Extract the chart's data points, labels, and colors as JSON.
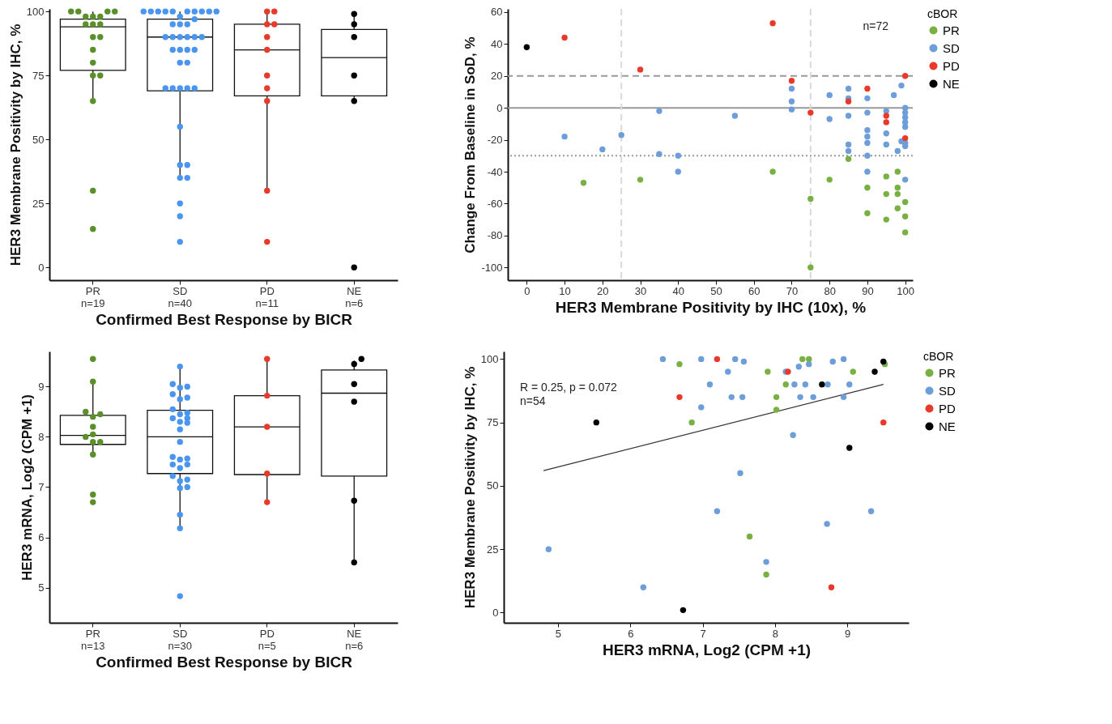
{
  "chart_data": [
    {
      "type": "box",
      "xlabel": "Confirmed Best Response by BICR",
      "ylabel": "HER3 Membrane Positivity by IHC, %",
      "categories": [
        "PR\nn=19",
        "SD\nn=40",
        "PD\nn=11",
        "NE\nn=6"
      ],
      "ylim": [
        -5,
        101
      ],
      "yticks": [
        0,
        25,
        50,
        75,
        100
      ],
      "marker": "circle",
      "boxes": [
        {
          "low": 65,
          "q1": 77,
          "median": 94,
          "q3": 97,
          "high": 100
        },
        {
          "low": 35,
          "q1": 69,
          "median": 90,
          "q3": 97,
          "high": 100
        },
        {
          "low": 30,
          "q1": 67,
          "median": 85,
          "q3": 95,
          "high": 100
        },
        {
          "low": 64,
          "q1": 67,
          "median": 82,
          "q3": 93,
          "high": 100
        }
      ],
      "series": [
        {
          "type": "scatter",
          "color": "#5a8f29",
          "x": [
            "PR\nn=19",
            "PR\nn=19",
            "PR\nn=19",
            "PR\nn=19",
            "PR\nn=19",
            "PR\nn=19",
            "PR\nn=19",
            "PR\nn=19",
            "PR\nn=19",
            "PR\nn=19",
            "PR\nn=19",
            "PR\nn=19",
            "PR\nn=19",
            "PR\nn=19",
            "PR\nn=19",
            "PR\nn=19",
            "PR\nn=19",
            "PR\nn=19",
            "PR\nn=19"
          ],
          "values": [
            100,
            100,
            100,
            100,
            98,
            98,
            98,
            95,
            95,
            95,
            90,
            90,
            85,
            80,
            75,
            75,
            65,
            30,
            15
          ]
        },
        {
          "type": "scatter",
          "color": "#4a95f0",
          "x": [
            "SD\nn=40",
            "SD\nn=40",
            "SD\nn=40",
            "SD\nn=40",
            "SD\nn=40",
            "SD\nn=40",
            "SD\nn=40",
            "SD\nn=40",
            "SD\nn=40",
            "SD\nn=40",
            "SD\nn=40",
            "SD\nn=40",
            "SD\nn=40",
            "SD\nn=40",
            "SD\nn=40",
            "SD\nn=40",
            "SD\nn=40",
            "SD\nn=40",
            "SD\nn=40",
            "SD\nn=40",
            "SD\nn=40",
            "SD\nn=40",
            "SD\nn=40",
            "SD\nn=40",
            "SD\nn=40",
            "SD\nn=40",
            "SD\nn=40",
            "SD\nn=40",
            "SD\nn=40",
            "SD\nn=40",
            "SD\nn=40",
            "SD\nn=40",
            "SD\nn=40",
            "SD\nn=40",
            "SD\nn=40",
            "SD\nn=40",
            "SD\nn=40",
            "SD\nn=40",
            "SD\nn=40",
            "SD\nn=40"
          ],
          "values": [
            100,
            100,
            100,
            100,
            100,
            100,
            100,
            100,
            100,
            100,
            98,
            97,
            95,
            95,
            95,
            90,
            90,
            90,
            90,
            90,
            90,
            85,
            85,
            85,
            85,
            80,
            80,
            70,
            70,
            70,
            70,
            70,
            55,
            40,
            40,
            35,
            35,
            25,
            20,
            10
          ]
        },
        {
          "type": "scatter",
          "color": "#e8392b",
          "x": [
            "PD\nn=11",
            "PD\nn=11",
            "PD\nn=11",
            "PD\nn=11",
            "PD\nn=11",
            "PD\nn=11",
            "PD\nn=11",
            "PD\nn=11",
            "PD\nn=11",
            "PD\nn=11",
            "PD\nn=11"
          ],
          "values": [
            100,
            100,
            95,
            95,
            90,
            85,
            75,
            70,
            65,
            30,
            10
          ]
        },
        {
          "type": "scatter",
          "color": "#000000",
          "x": [
            "NE\nn=6",
            "NE\nn=6",
            "NE\nn=6",
            "NE\nn=6",
            "NE\nn=6",
            "NE\nn=6"
          ],
          "values": [
            99,
            95,
            90,
            75,
            65,
            0
          ]
        }
      ]
    },
    {
      "type": "scatter",
      "xlabel": "HER3 Membrane Positivity by IHC (10x), %",
      "ylabel": "Change From Baseline in SoD, %",
      "xlim": [
        -5,
        102
      ],
      "xticks": [
        0,
        10,
        20,
        30,
        40,
        50,
        60,
        70,
        80,
        90,
        100
      ],
      "ylim": [
        -108,
        62
      ],
      "yticks": [
        -100,
        -80,
        -60,
        -40,
        -20,
        0,
        20,
        40,
        60
      ],
      "legend": "right",
      "legend_title": "cBOR",
      "marker": "circle",
      "annotations": [
        "n=72"
      ],
      "ref_lines": [
        {
          "axis": "y",
          "value": 20,
          "color": "#999999",
          "line_style": "dashed"
        },
        {
          "axis": "y",
          "value": 0,
          "color": "#999999",
          "line_style": "solid"
        },
        {
          "axis": "y",
          "value": -30,
          "color": "#999999",
          "line_style": "dotted"
        },
        {
          "axis": "x",
          "value": 25,
          "color": "#d9d9d9",
          "line_style": "dashed"
        },
        {
          "axis": "x",
          "value": 75,
          "color": "#d9d9d9",
          "line_style": "dashed"
        }
      ],
      "series": [
        {
          "name": "PR",
          "color": "#78b041",
          "x": [
            15,
            30,
            65,
            75,
            75,
            80,
            85,
            90,
            90,
            95,
            95,
            95,
            98,
            98,
            98,
            98,
            100,
            100,
            100
          ],
          "values": [
            -47,
            -45,
            -40,
            -57,
            -100,
            -45,
            -32,
            -50,
            -66,
            -43,
            -54,
            -70,
            -40,
            -50,
            -54,
            -63,
            -59,
            -68,
            -78
          ]
        },
        {
          "name": "SD",
          "color": "#6d9eda",
          "x": [
            10,
            20,
            25,
            35,
            35,
            40,
            40,
            55,
            70,
            70,
            70,
            80,
            80,
            85,
            85,
            85,
            85,
            85,
            90,
            90,
            90,
            90,
            90,
            90,
            90,
            95,
            95,
            95,
            97,
            98,
            99,
            99,
            100,
            100,
            100,
            100,
            100,
            100,
            100,
            100
          ],
          "values": [
            -18,
            -26,
            -17,
            -2,
            -29,
            -30,
            -40,
            -5,
            12,
            4,
            -1,
            8,
            -7,
            12,
            6,
            -5,
            -23,
            -27,
            6,
            -3,
            -14,
            -18,
            -22,
            -30,
            -40,
            -2,
            -16,
            -23,
            8,
            -27,
            -21,
            14,
            0,
            -3,
            -6,
            -9,
            -12,
            -22,
            -24,
            -45
          ]
        },
        {
          "name": "PD",
          "color": "#e8392b",
          "x": [
            10,
            30,
            65,
            70,
            75,
            85,
            90,
            95,
            95,
            100,
            100
          ],
          "values": [
            44,
            24,
            53,
            17,
            -3,
            4,
            12,
            -5,
            -9,
            20,
            -19
          ]
        },
        {
          "name": "NE",
          "color": "#000000",
          "x": [
            0
          ],
          "values": [
            38
          ]
        }
      ]
    },
    {
      "type": "box",
      "xlabel": "Confirmed Best Response by BICR",
      "ylabel": "HER3 mRNA, Log2 (CPM +1)",
      "categories": [
        "PR\nn=13",
        "SD\nn=30",
        "PD\nn=5",
        "NE\nn=6"
      ],
      "ylim": [
        4.3,
        9.7
      ],
      "yticks": [
        5,
        6,
        7,
        8,
        9
      ],
      "marker": "circle",
      "boxes": [
        {
          "low": 7.6,
          "q1": 7.85,
          "median": 8.03,
          "q3": 8.43,
          "high": 9.05
        },
        {
          "low": 6.15,
          "q1": 7.27,
          "median": 8.0,
          "q3": 8.53,
          "high": 9.38
        },
        {
          "low": 6.7,
          "q1": 7.25,
          "median": 8.2,
          "q3": 8.82,
          "high": 9.52
        },
        {
          "low": 5.5,
          "q1": 7.22,
          "median": 8.87,
          "q3": 9.33,
          "high": 9.52
        }
      ],
      "series": [
        {
          "type": "scatter",
          "color": "#5a8f29",
          "x": [
            "PR\nn=13",
            "PR\nn=13",
            "PR\nn=13",
            "PR\nn=13",
            "PR\nn=13",
            "PR\nn=13",
            "PR\nn=13",
            "PR\nn=13",
            "PR\nn=13",
            "PR\nn=13",
            "PR\nn=13",
            "PR\nn=13",
            "PR\nn=13"
          ],
          "values": [
            9.55,
            9.1,
            8.5,
            8.45,
            8.4,
            8.2,
            8.05,
            8.0,
            7.9,
            7.9,
            7.65,
            6.85,
            6.7
          ]
        },
        {
          "type": "scatter",
          "color": "#4a95f0",
          "x": [
            "SD\nn=30",
            "SD\nn=30",
            "SD\nn=30",
            "SD\nn=30",
            "SD\nn=30",
            "SD\nn=30",
            "SD\nn=30",
            "SD\nn=30",
            "SD\nn=30",
            "SD\nn=30",
            "SD\nn=30",
            "SD\nn=30",
            "SD\nn=30",
            "SD\nn=30",
            "SD\nn=30",
            "SD\nn=30",
            "SD\nn=30",
            "SD\nn=30",
            "SD\nn=30",
            "SD\nn=30",
            "SD\nn=30",
            "SD\nn=30",
            "SD\nn=30",
            "SD\nn=30",
            "SD\nn=30",
            "SD\nn=30",
            "SD\nn=30",
            "SD\nn=30",
            "SD\nn=30",
            "SD\nn=30"
          ],
          "values": [
            9.4,
            9.05,
            9.0,
            8.98,
            8.85,
            8.78,
            8.75,
            8.55,
            8.48,
            8.45,
            8.37,
            8.37,
            8.3,
            8.28,
            8.15,
            7.9,
            7.6,
            7.57,
            7.55,
            7.45,
            7.45,
            7.38,
            7.22,
            7.15,
            7.12,
            7.0,
            6.98,
            6.45,
            6.18,
            4.83
          ]
        },
        {
          "type": "scatter",
          "color": "#e8392b",
          "x": [
            "PD\nn=5",
            "PD\nn=5",
            "PD\nn=5",
            "PD\nn=5",
            "PD\nn=5"
          ],
          "values": [
            9.55,
            8.82,
            8.2,
            7.27,
            6.7
          ]
        },
        {
          "type": "scatter",
          "color": "#000000",
          "x": [
            "NE\nn=6",
            "NE\nn=6",
            "NE\nn=6",
            "NE\nn=6",
            "NE\nn=6",
            "NE\nn=6"
          ],
          "values": [
            9.55,
            9.45,
            9.05,
            8.7,
            6.73,
            5.5
          ]
        }
      ]
    },
    {
      "type": "scatter",
      "xlabel": "HER3 mRNA, Log2 (CPM +1)",
      "ylabel": "HER3 Membrane Positivity by IHC, %",
      "xlim": [
        4.25,
        9.85
      ],
      "xticks": [
        5,
        6,
        7,
        8,
        9
      ],
      "ylim": [
        -4,
        103
      ],
      "yticks": [
        0,
        25,
        50,
        75,
        100
      ],
      "legend": "right",
      "legend_title": "cBOR",
      "marker": "circle",
      "annotations": [
        "R = 0.25, p = 0.072",
        "n=54"
      ],
      "series": [
        {
          "name": "PR",
          "color": "#78b041",
          "x": [
            6.68,
            7.9,
            8.38,
            8.47,
            9.08,
            9.52,
            8.15,
            8.02,
            8.02,
            6.85,
            7.65,
            7.88
          ],
          "values": [
            98,
            95,
            100,
            100,
            95,
            98,
            90,
            85,
            80,
            75,
            30,
            15
          ]
        },
        {
          "name": "SD",
          "color": "#6d9eda",
          "x": [
            6.45,
            6.98,
            7.45,
            7.57,
            7.35,
            7.1,
            7.4,
            7.55,
            6.98,
            8.15,
            8.33,
            8.47,
            8.27,
            8.42,
            8.73,
            9.03,
            8.35,
            8.53,
            8.95,
            8.8,
            8.95,
            8.25,
            7.52,
            7.2,
            9.33,
            8.72,
            4.87,
            7.88,
            6.18
          ],
          "values": [
            100,
            100,
            100,
            99,
            95,
            90,
            85,
            85,
            81,
            95,
            97,
            98,
            90,
            90,
            90,
            90,
            85,
            85,
            85,
            99,
            100,
            70,
            55,
            40,
            40,
            35,
            25,
            20,
            10
          ]
        },
        {
          "name": "PD",
          "color": "#e8392b",
          "x": [
            7.2,
            8.18,
            6.68,
            9.5,
            8.78
          ],
          "values": [
            100,
            95,
            85,
            75,
            10
          ]
        },
        {
          "name": "NE",
          "color": "#000000",
          "x": [
            9.5,
            9.38,
            8.65,
            5.53,
            9.03,
            6.73
          ],
          "values": [
            99,
            95,
            90,
            75,
            65,
            1
          ]
        },
        {
          "type": "line",
          "marker": "none",
          "color": "#333333",
          "x": [
            4.8,
            9.5
          ],
          "values": [
            56,
            90
          ]
        }
      ]
    }
  ]
}
